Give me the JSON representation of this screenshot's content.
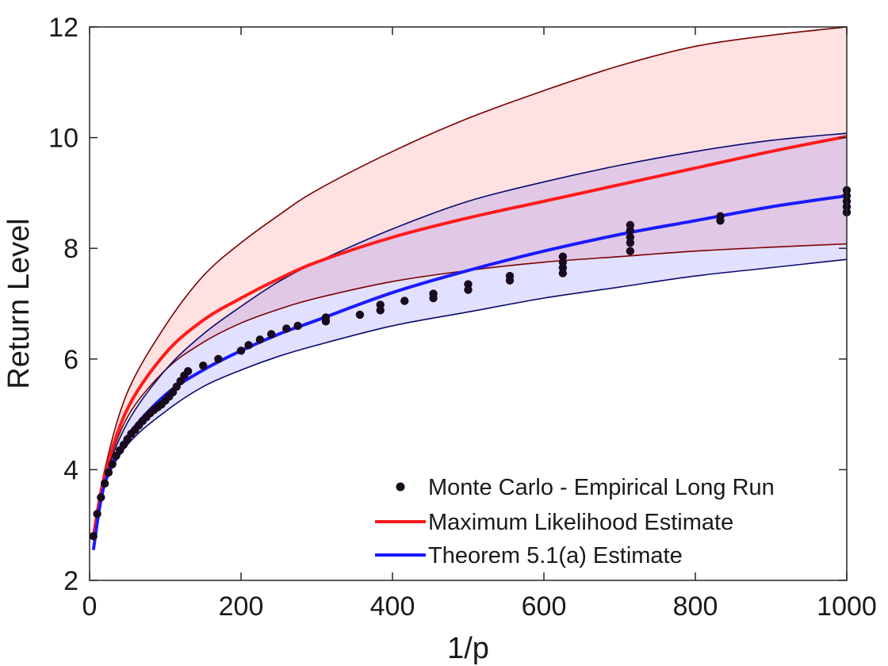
{
  "chart_data": {
    "type": "line",
    "title": "",
    "xlabel": "1/p",
    "ylabel": "Return Level",
    "xlim": [
      0,
      1000
    ],
    "ylim": [
      2,
      12
    ],
    "xticks": [
      0,
      200,
      400,
      600,
      800,
      1000
    ],
    "yticks": [
      2,
      4,
      6,
      8,
      10,
      12
    ],
    "x_tick_labels": [
      "0",
      "200",
      "400",
      "600",
      "800",
      "1000"
    ],
    "y_tick_labels": [
      "2",
      "4",
      "6",
      "8",
      "10",
      "12"
    ],
    "grid": false,
    "legend_position": "bottom-right",
    "legend": [
      "Monte Carlo - Empirical Long Run",
      "Maximum Likelihood Estimate",
      "Theorem 5.1(a) Estimate"
    ],
    "x": [
      5,
      20,
      50,
      100,
      150,
      200,
      250,
      300,
      400,
      500,
      600,
      700,
      800,
      900,
      1000
    ],
    "series": [
      {
        "name": "Maximum Likelihood Estimate",
        "color": "#ff1a1a",
        "role": "estimate",
        "values": [
          2.8,
          3.9,
          5.1,
          6.1,
          6.7,
          7.1,
          7.45,
          7.75,
          8.2,
          8.55,
          8.85,
          9.15,
          9.45,
          9.75,
          10.02
        ]
      },
      {
        "name": "Maximum Likelihood Estimate upper bound",
        "color": "#7a0000",
        "role": "band",
        "values": [
          2.8,
          4.0,
          5.4,
          6.6,
          7.5,
          8.1,
          8.6,
          9.05,
          9.75,
          10.35,
          10.85,
          11.3,
          11.65,
          11.85,
          12.0
        ]
      },
      {
        "name": "Maximum Likelihood Estimate lower bound",
        "color": "#7a0000",
        "role": "band",
        "values": [
          2.8,
          3.85,
          4.95,
          5.8,
          6.3,
          6.65,
          6.9,
          7.1,
          7.4,
          7.6,
          7.75,
          7.85,
          7.95,
          8.02,
          8.08
        ]
      },
      {
        "name": "Theorem 5.1(a) Estimate",
        "color": "#1a1aff",
        "role": "estimate",
        "values": [
          2.55,
          3.75,
          4.6,
          5.35,
          5.8,
          6.15,
          6.45,
          6.7,
          7.2,
          7.6,
          7.95,
          8.25,
          8.5,
          8.75,
          8.95
        ]
      },
      {
        "name": "Theorem 5.1(a) Estimate upper bound",
        "color": "#0a0a6e",
        "role": "band",
        "values": [
          2.55,
          3.8,
          4.85,
          5.8,
          6.45,
          6.95,
          7.4,
          7.75,
          8.35,
          8.85,
          9.2,
          9.5,
          9.75,
          9.95,
          10.08
        ]
      },
      {
        "name": "Theorem 5.1(a) Estimate lower bound",
        "color": "#0a0a6e",
        "role": "band",
        "values": [
          2.55,
          3.7,
          4.45,
          5.05,
          5.5,
          5.8,
          6.05,
          6.25,
          6.6,
          6.85,
          7.1,
          7.3,
          7.5,
          7.65,
          7.8
        ]
      }
    ],
    "scatter": {
      "name": "Monte Carlo - Empirical Long Run",
      "color": "#1a0a1e",
      "x": [
        5,
        10,
        15,
        20,
        25,
        30,
        35,
        40,
        45,
        50,
        55,
        60,
        65,
        70,
        75,
        80,
        85,
        90,
        95,
        100,
        105,
        110,
        115,
        120,
        125,
        130,
        150,
        170,
        200,
        210,
        225,
        240,
        260,
        275,
        312,
        312,
        357,
        384,
        384,
        416,
        454,
        454,
        500,
        500,
        555,
        555,
        625,
        625,
        625,
        625,
        714,
        714,
        714,
        714,
        714,
        833,
        833,
        1000,
        1000,
        1000,
        1000,
        1000
      ],
      "y": [
        2.8,
        3.2,
        3.5,
        3.75,
        3.95,
        4.1,
        4.25,
        4.35,
        4.45,
        4.55,
        4.65,
        4.72,
        4.8,
        4.88,
        4.95,
        5.02,
        5.08,
        5.13,
        5.18,
        5.25,
        5.32,
        5.4,
        5.5,
        5.6,
        5.7,
        5.78,
        5.88,
        6.0,
        6.15,
        6.25,
        6.35,
        6.45,
        6.55,
        6.6,
        6.68,
        6.75,
        6.8,
        6.88,
        6.98,
        7.05,
        7.1,
        7.18,
        7.25,
        7.35,
        7.42,
        7.5,
        7.55,
        7.65,
        7.75,
        7.85,
        7.95,
        8.1,
        8.2,
        8.32,
        8.42,
        8.5,
        8.58,
        8.65,
        8.75,
        8.85,
        8.95,
        9.05
      ]
    }
  }
}
